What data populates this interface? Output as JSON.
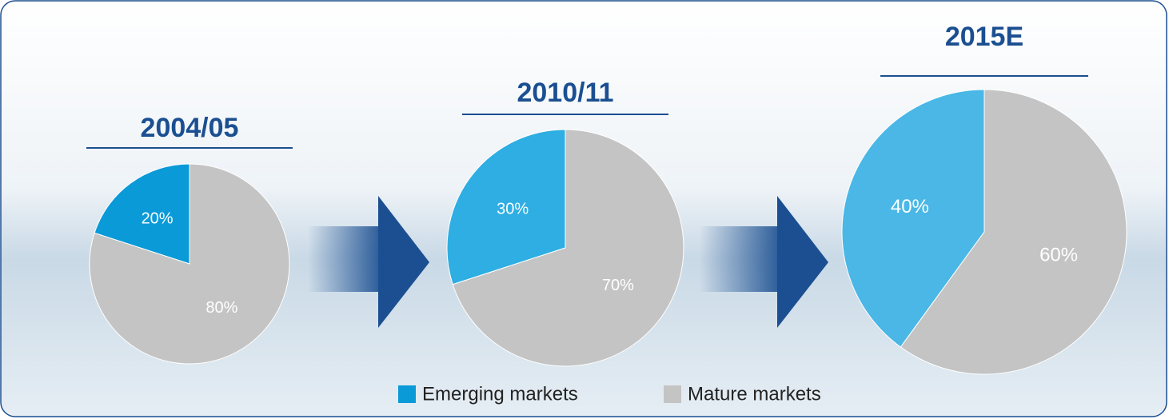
{
  "chart_data": [
    {
      "type": "pie",
      "title": "2004/05",
      "categories": [
        "Emerging markets",
        "Mature markets"
      ],
      "values": [
        20,
        80
      ],
      "value_labels": [
        "20%",
        "80%"
      ],
      "colors": [
        "#0a9ad8",
        "#c4c4c4"
      ]
    },
    {
      "type": "pie",
      "title": "2010/11",
      "categories": [
        "Emerging markets",
        "Mature markets"
      ],
      "values": [
        30,
        70
      ],
      "value_labels": [
        "30%",
        "70%"
      ],
      "colors": [
        "#2eaee2",
        "#c4c4c4"
      ]
    },
    {
      "type": "pie",
      "title": "2015E",
      "categories": [
        "Emerging markets",
        "Mature markets"
      ],
      "values": [
        40,
        60
      ],
      "value_labels": [
        "40%",
        "60%"
      ],
      "colors": [
        "#4ab7e6",
        "#c4c4c4"
      ]
    }
  ]
}
